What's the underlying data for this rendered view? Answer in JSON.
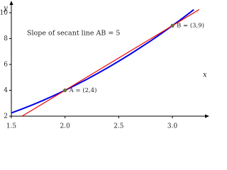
{
  "chart_data": {
    "type": "line",
    "x_label": "x",
    "y_label": "y",
    "annotation": "Slope of secant line AB = 5",
    "xlim": [
      1.5,
      3.33
    ],
    "ylim": [
      2,
      10.7
    ],
    "xticks": [
      1.5,
      {
        "value": 2,
        "label": "2.0"
      },
      2.5,
      {
        "value": 3,
        "label": "3.0"
      }
    ],
    "yticks": [
      2,
      4,
      6,
      8,
      10
    ],
    "series": [
      {
        "color": "#0000ee",
        "x": [
          1.5,
          1.6,
          1.7,
          1.8,
          1.9,
          2.0,
          2.1,
          2.2,
          2.3,
          2.4,
          2.5,
          2.6,
          2.7,
          2.8,
          2.9,
          3.0,
          3.1,
          3.2
        ],
        "values": [
          2.25,
          2.56,
          2.89,
          3.24,
          3.61,
          4,
          4.41,
          4.84,
          5.29,
          5.76,
          6.25,
          6.76,
          7.29,
          7.84,
          8.41,
          9,
          9.61,
          10.24
        ]
      },
      {
        "color": "#ee0000",
        "x": [
          1.6,
          3.25
        ],
        "values": [
          2,
          10.25
        ]
      }
    ],
    "points": {
      "color": "#6b7040",
      "x": [
        2,
        3
      ],
      "values": [
        4,
        9
      ],
      "labels": [
        "A = (2,4)",
        "B = (3,9)"
      ]
    }
  }
}
